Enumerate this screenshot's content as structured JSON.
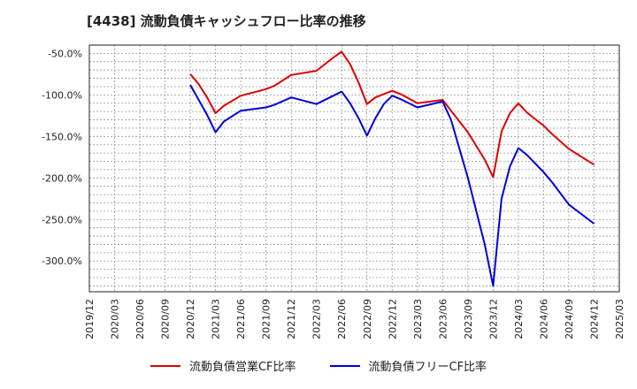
{
  "title": "[4438]  流動負債キャッシュフロー比率の推移",
  "chart_data": {
    "type": "line",
    "title": "[4438]  流動負債キャッシュフロー比率の推移",
    "xlabel": "",
    "ylabel": "",
    "x_ticks": [
      "2019/12",
      "2020/03",
      "2020/06",
      "2020/09",
      "2020/12",
      "2021/03",
      "2021/06",
      "2021/09",
      "2021/12",
      "2022/03",
      "2022/06",
      "2022/09",
      "2022/12",
      "2023/03",
      "2023/06",
      "2023/09",
      "2023/12",
      "2024/03",
      "2024/06",
      "2024/09",
      "2024/12",
      "2025/03"
    ],
    "y_ticks": [
      "-50.0%",
      "-100.0%",
      "-150.0%",
      "-200.0%",
      "-250.0%",
      "-300.0%"
    ],
    "y_tick_values": [
      -50,
      -100,
      -150,
      -200,
      -250,
      -300
    ],
    "ylim": [
      -337,
      -40
    ],
    "xlim": [
      "2019/12",
      "2025/03"
    ],
    "grid": true,
    "legend_position": "bottom",
    "series": [
      {
        "name": "流動負債営業CF比率",
        "color": "#dd0000",
        "points": [
          [
            "2020/12",
            -75
          ],
          [
            "2021/01",
            -87
          ],
          [
            "2021/02",
            -103
          ],
          [
            "2021/03",
            -122
          ],
          [
            "2021/04",
            -113
          ],
          [
            "2021/06",
            -101
          ],
          [
            "2021/09",
            -93
          ],
          [
            "2021/10",
            -89
          ],
          [
            "2021/12",
            -76
          ],
          [
            "2022/03",
            -71
          ],
          [
            "2022/05",
            -55
          ],
          [
            "2022/06",
            -48
          ],
          [
            "2022/07",
            -63
          ],
          [
            "2022/08",
            -85
          ],
          [
            "2022/09",
            -111
          ],
          [
            "2022/10",
            -103
          ],
          [
            "2022/12",
            -95
          ],
          [
            "2023/01",
            -99
          ],
          [
            "2023/03",
            -110
          ],
          [
            "2023/06",
            -106
          ],
          [
            "2023/07",
            -119
          ],
          [
            "2023/09",
            -145
          ],
          [
            "2023/11",
            -178
          ],
          [
            "2023/12",
            -199
          ],
          [
            "2024/01",
            -144
          ],
          [
            "2024/02",
            -122
          ],
          [
            "2024/03",
            -110
          ],
          [
            "2024/04",
            -121
          ],
          [
            "2024/06",
            -137
          ],
          [
            "2024/07",
            -147
          ],
          [
            "2024/09",
            -165
          ],
          [
            "2024/12",
            -184
          ]
        ]
      },
      {
        "name": "流動負債フリーCF比率",
        "color": "#0000dd",
        "points": [
          [
            "2020/12",
            -88
          ],
          [
            "2021/01",
            -106
          ],
          [
            "2021/02",
            -124
          ],
          [
            "2021/03",
            -145
          ],
          [
            "2021/04",
            -132
          ],
          [
            "2021/06",
            -119
          ],
          [
            "2021/09",
            -115
          ],
          [
            "2021/10",
            -112
          ],
          [
            "2021/12",
            -103
          ],
          [
            "2022/03",
            -111
          ],
          [
            "2022/05",
            -101
          ],
          [
            "2022/06",
            -96
          ],
          [
            "2022/07",
            -110
          ],
          [
            "2022/08",
            -128
          ],
          [
            "2022/09",
            -149
          ],
          [
            "2022/10",
            -128
          ],
          [
            "2022/11",
            -111
          ],
          [
            "2022/12",
            -101
          ],
          [
            "2023/01",
            -105
          ],
          [
            "2023/03",
            -115
          ],
          [
            "2023/06",
            -108
          ],
          [
            "2023/07",
            -130
          ],
          [
            "2023/09",
            -200
          ],
          [
            "2023/11",
            -280
          ],
          [
            "2023/12",
            -330
          ],
          [
            "2024/01",
            -225
          ],
          [
            "2024/02",
            -186
          ],
          [
            "2024/03",
            -164
          ],
          [
            "2024/04",
            -172
          ],
          [
            "2024/06",
            -193
          ],
          [
            "2024/07",
            -205
          ],
          [
            "2024/09",
            -232
          ],
          [
            "2024/12",
            -255
          ]
        ]
      }
    ]
  }
}
